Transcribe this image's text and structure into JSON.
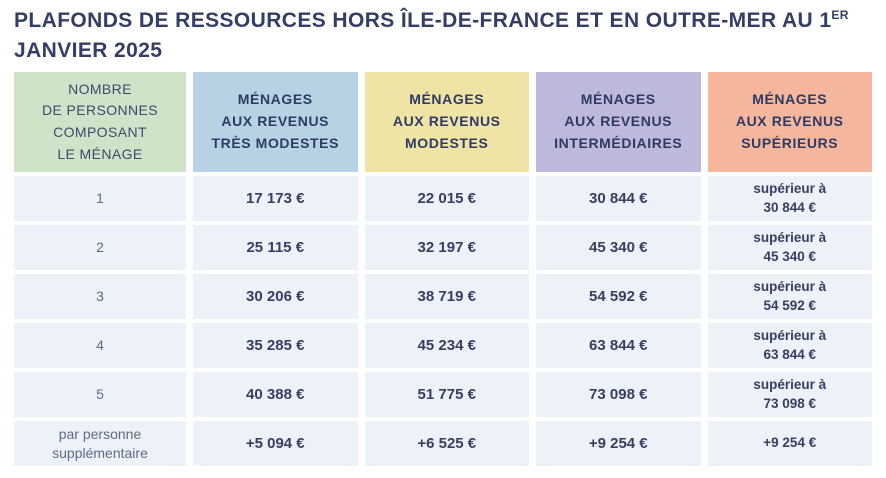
{
  "title": {
    "line1": "PLAFONDS DE RESSOURCES HORS ÎLE-DE-FRANCE ET EN OUTRE-MER AU 1",
    "sup": "ER",
    "line2": "JANVIER 2025"
  },
  "colors": {
    "title_text": "#333e66",
    "header_green": "#cfe3c8",
    "header_blue": "#b7d3e3",
    "header_yellow": "#f0e3a6",
    "header_purple": "#bcb9dc",
    "header_salmon": "#f4b79d",
    "data_cell_bg": "#edf2f8",
    "value_text": "#353e63",
    "label_text": "#5d6b87"
  },
  "table": {
    "columns": [
      {
        "label": "NOMBRE\nDE PERSONNES\nCOMPOSANT\nLE MÉNAGE",
        "color": "#cfe3c8"
      },
      {
        "label": "MÉNAGES\nAUX REVENUS\nTRÈS MODESTES",
        "color": "#b7d3e3"
      },
      {
        "label": "MÉNAGES\nAUX REVENUS\nMODESTES",
        "color": "#f0e3a6"
      },
      {
        "label": "MÉNAGES\nAUX REVENUS\nINTERMÉDIAIRES",
        "color": "#bcb9dc"
      },
      {
        "label": "MÉNAGES\nAUX REVENUS\nSUPÉRIEURS",
        "color": "#f4b79d"
      }
    ],
    "rows": [
      {
        "label": "1",
        "values": [
          "17 173 €",
          "22 015 €",
          "30 844 €",
          "supérieur à\n30 844 €"
        ]
      },
      {
        "label": "2",
        "values": [
          "25 115 €",
          "32 197 €",
          "45 340 €",
          "supérieur à\n45 340 €"
        ]
      },
      {
        "label": "3",
        "values": [
          "30 206 €",
          "38 719 €",
          "54 592 €",
          "supérieur à\n54 592 €"
        ]
      },
      {
        "label": "4",
        "values": [
          "35 285 €",
          "45 234 €",
          "63 844 €",
          "supérieur à\n63 844 €"
        ]
      },
      {
        "label": "5",
        "values": [
          "40 388 €",
          "51 775 €",
          "73 098 €",
          "supérieur à\n73 098 €"
        ]
      },
      {
        "label": "par personne\nsupplémentaire",
        "values": [
          "+5 094 €",
          "+6 525 €",
          "+9 254 €",
          "+9 254 €"
        ]
      }
    ]
  }
}
